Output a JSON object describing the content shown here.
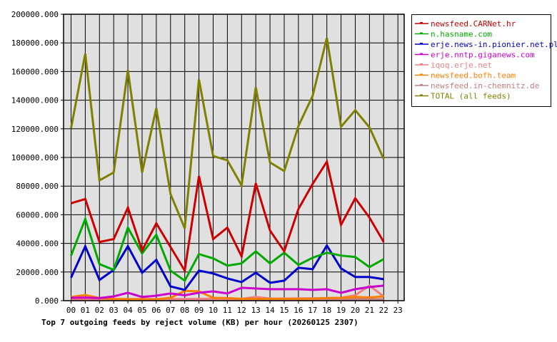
{
  "chart_data": {
    "type": "line",
    "title": "Top 7 outgoing feeds by reject volume (KB) per hour (20260125 2307)",
    "xlabel": "",
    "ylabel": "",
    "ylim": [
      0,
      200000
    ],
    "yticks": [
      "0.000",
      "20000.000",
      "40000.000",
      "60000.000",
      "80000.000",
      "100000.000",
      "120000.000",
      "140000.000",
      "160000.000",
      "180000.000",
      "200000.000"
    ],
    "categories": [
      "00",
      "01",
      "02",
      "03",
      "04",
      "05",
      "06",
      "07",
      "08",
      "09",
      "10",
      "11",
      "12",
      "13",
      "14",
      "15",
      "16",
      "17",
      "18",
      "19",
      "20",
      "21",
      "22",
      "23"
    ],
    "grid": true,
    "legend_position": "right",
    "series": [
      {
        "name": "newsfeed.CARNet.hr",
        "color": "#cc0000",
        "values": [
          68000,
          71000,
          41000,
          43000,
          65000,
          35000,
          54000,
          37500,
          21000,
          87000,
          43000,
          51000,
          31000,
          82000,
          49000,
          34500,
          64000,
          81500,
          97000,
          53000,
          71500,
          58000,
          41000
        ]
      },
      {
        "name": "n.hasname.com",
        "color": "#00aa00",
        "values": [
          31500,
          57000,
          25500,
          21500,
          51000,
          33000,
          46000,
          21000,
          14000,
          32500,
          29500,
          24500,
          26000,
          34500,
          26000,
          33500,
          25000,
          30000,
          33500,
          31500,
          30500,
          23500,
          29000
        ]
      },
      {
        "name": "erje.news-in.pionier.net.pl",
        "color": "#0000cc",
        "values": [
          16000,
          38000,
          14500,
          21500,
          38000,
          19500,
          28500,
          10000,
          7500,
          21000,
          19000,
          15500,
          13000,
          19500,
          12500,
          14000,
          23000,
          22000,
          38500,
          22500,
          16500,
          16500,
          15000
        ]
      },
      {
        "name": "erje.nntp.giganews.com",
        "color": "#cc00cc",
        "values": [
          2000,
          2200,
          1800,
          3000,
          5500,
          2600,
          3500,
          5000,
          3800,
          5500,
          6500,
          5000,
          9000,
          8500,
          8000,
          8000,
          8000,
          7500,
          8000,
          5500,
          8000,
          9500,
          10500
        ]
      },
      {
        "name": "iqoq.erje.net",
        "color": "#f08080",
        "values": [
          1300,
          1300,
          1200,
          1200,
          1200,
          1200,
          1200,
          1200,
          1200,
          1300,
          1300,
          1300,
          1300,
          2600,
          1500,
          1500,
          1600,
          1700,
          1800,
          2000,
          3800,
          10500,
          3000
        ]
      },
      {
        "name": "newsfeed.bofh.team",
        "color": "#ff8000",
        "values": [
          2600,
          4000,
          1800,
          1200,
          1000,
          1000,
          1000,
          2000,
          6800,
          6500,
          2000,
          1800,
          1300,
          1300,
          1300,
          1300,
          1300,
          1300,
          1800,
          2000,
          2600,
          2300,
          3000
        ]
      },
      {
        "name": "newsfeed.in-chemnitz.de",
        "color": "#c08080",
        "values": [
          1000,
          1000,
          1000,
          1000,
          1000,
          1000,
          1000,
          1000,
          1000,
          1000,
          1000,
          1000,
          1000,
          1000,
          1000,
          1000,
          1000,
          1000,
          1000,
          1000,
          1000,
          1000,
          1000
        ]
      },
      {
        "name": "TOTAL (all feeds)",
        "color": "#808000",
        "values": [
          120500,
          172500,
          84000,
          89500,
          161000,
          89500,
          134500,
          74500,
          50500,
          154500,
          101000,
          98000,
          80500,
          149000,
          96500,
          90500,
          122000,
          143000,
          183500,
          121500,
          133000,
          121000,
          99000
        ]
      }
    ]
  }
}
